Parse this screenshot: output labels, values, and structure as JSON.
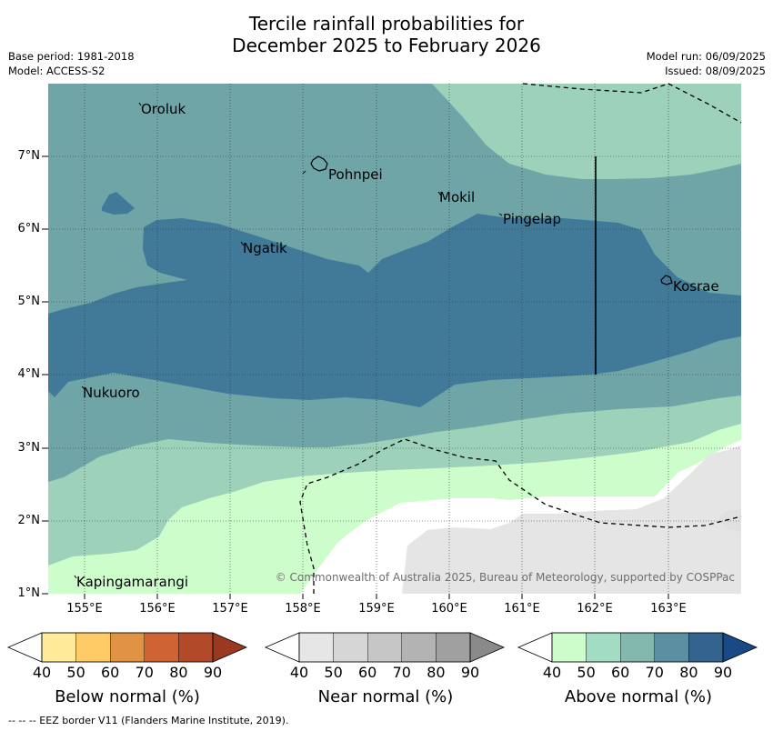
{
  "title": {
    "line1": "Tercile rainfall probabilities for",
    "line2": "December 2025 to February 2026"
  },
  "meta_left": {
    "base_period": "Base period: 1981-2018",
    "model": "Model: ACCESS-S2"
  },
  "meta_right": {
    "model_run": "Model run: 06/09/2025",
    "issued": "Issued: 08/09/2025"
  },
  "map": {
    "lat_labels": [
      "7°N",
      "6°N",
      "5°N",
      "4°N",
      "3°N",
      "2°N",
      "1°N"
    ],
    "lon_labels": [
      "155°E",
      "156°E",
      "157°E",
      "158°E",
      "159°E",
      "160°E",
      "161°E",
      "162°E",
      "163°E"
    ],
    "places": {
      "oroluk": "Oroluk",
      "pohnpei": "Pohnpei",
      "mokil": "Mokil",
      "pingelap": "Pingelap",
      "ngatik": "Ngatik",
      "kosrae": "Kosrae",
      "nukuoro": "Nukuoro",
      "kapingamarangi": "Kapingamarangi"
    },
    "credit": "© Commonwealth of Australia 2025, Bureau of Meteorology, supported by COSPPac",
    "colors": {
      "above_50": "#cdfdcb",
      "above_60": "#9dd1b9",
      "above_70": "#6fa5a7",
      "above_80": "#417a98",
      "near_40": "#e5e5e5",
      "land_white": "#ffffff"
    }
  },
  "colorbars": [
    {
      "title": "Below normal (%)",
      "ticks": [
        "40",
        "50",
        "60",
        "70",
        "80",
        "90"
      ],
      "colors": [
        "#ffffff",
        "#ffeb99",
        "#ffcb66",
        "#e09443",
        "#cf6331",
        "#b24a2a",
        "#9a3822"
      ]
    },
    {
      "title": "Near normal (%)",
      "ticks": [
        "40",
        "50",
        "60",
        "70",
        "80",
        "90"
      ],
      "colors": [
        "#ffffff",
        "#e6e6e6",
        "#d6d6d6",
        "#c6c6c6",
        "#b3b3b3",
        "#a0a0a0",
        "#8a8a8a"
      ]
    },
    {
      "title": "Above normal (%)",
      "ticks": [
        "40",
        "50",
        "60",
        "70",
        "80",
        "90"
      ],
      "colors": [
        "#ffffff",
        "#cdfdcb",
        "#a2dcc2",
        "#83b8ae",
        "#5a90a2",
        "#33638e",
        "#1a4a86"
      ]
    }
  ],
  "footer": "--  --  -- EEZ border V11 (Flanders Marine Institute, 2019)."
}
